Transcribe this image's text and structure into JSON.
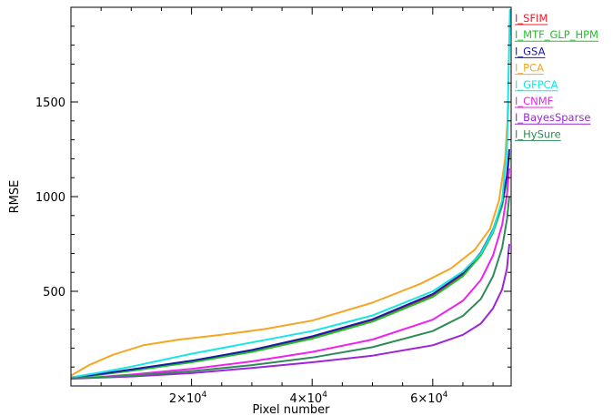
{
  "chart_data": {
    "type": "line",
    "xlabel": "Pixel number",
    "ylabel": "RMSE",
    "xlim": [
      0,
      73000
    ],
    "ylim": [
      0,
      2000
    ],
    "x_ticks": [
      {
        "value": 20000,
        "base": "2×10",
        "exp": "4"
      },
      {
        "value": 40000,
        "base": "4×10",
        "exp": "4"
      },
      {
        "value": 60000,
        "base": "6×10",
        "exp": "4"
      }
    ],
    "y_ticks": [
      500,
      1000,
      1500
    ],
    "legend_position": "top-right, outside plot",
    "grid": false,
    "series": [
      {
        "name": "I_SFIM",
        "color": "#e8202a",
        "x": [
          0,
          5000,
          10000,
          20000,
          30000,
          40000,
          50000,
          60000,
          65000,
          68000,
          70000,
          71500,
          72300,
          72700
        ],
        "y": [
          45,
          62,
          82,
          128,
          185,
          255,
          345,
          480,
          590,
          700,
          820,
          960,
          1100,
          1230
        ]
      },
      {
        "name": "I_MTF_GLP_HPM",
        "color": "#22c02a",
        "x": [
          0,
          5000,
          10000,
          20000,
          30000,
          40000,
          50000,
          60000,
          65000,
          68000,
          70000,
          71500,
          72300,
          72700
        ],
        "y": [
          45,
          60,
          80,
          125,
          180,
          250,
          340,
          470,
          580,
          690,
          810,
          950,
          1090,
          1220
        ]
      },
      {
        "name": "I_GSA",
        "color": "#1a1aa8",
        "x": [
          0,
          5000,
          10000,
          20000,
          30000,
          40000,
          50000,
          60000,
          65000,
          68000,
          70000,
          71500,
          72300,
          72700
        ],
        "y": [
          45,
          64,
          87,
          133,
          190,
          262,
          352,
          485,
          595,
          705,
          825,
          970,
          1110,
          1250
        ]
      },
      {
        "name": "I_PCA",
        "color": "#f5a623",
        "x": [
          0,
          3000,
          7000,
          12000,
          18000,
          25000,
          32000,
          40000,
          50000,
          58000,
          63000,
          67000,
          69500,
          71000,
          72000,
          72600
        ],
        "y": [
          55,
          110,
          165,
          215,
          245,
          270,
          300,
          345,
          440,
          540,
          620,
          720,
          830,
          980,
          1200,
          1500
        ]
      },
      {
        "name": "I_GFPCA",
        "color": "#18e5e5",
        "x": [
          0,
          5000,
          10000,
          20000,
          30000,
          40000,
          50000,
          60000,
          65000,
          68000,
          70000,
          71500,
          72300,
          72800
        ],
        "y": [
          45,
          72,
          102,
          170,
          230,
          290,
          372,
          500,
          605,
          700,
          820,
          980,
          1250,
          1990
        ]
      },
      {
        "name": "I_CNMF",
        "color": "#ee22ee",
        "x": [
          0,
          5000,
          10000,
          20000,
          30000,
          40000,
          50000,
          60000,
          65000,
          68000,
          70000,
          71500,
          72300,
          72700
        ],
        "y": [
          40,
          48,
          60,
          90,
          130,
          180,
          245,
          350,
          450,
          560,
          690,
          850,
          1010,
          1150
        ]
      },
      {
        "name": "I_BayesSparse",
        "color": "#9b25d9",
        "x": [
          0,
          5000,
          10000,
          20000,
          30000,
          40000,
          50000,
          60000,
          65000,
          68000,
          70000,
          71500,
          72300,
          72700
        ],
        "y": [
          38,
          44,
          50,
          68,
          95,
          125,
          160,
          215,
          270,
          330,
          410,
          510,
          620,
          750
        ]
      },
      {
        "name": "I_HySure",
        "color": "#2e8b57",
        "x": [
          0,
          5000,
          10000,
          20000,
          30000,
          40000,
          50000,
          60000,
          65000,
          68000,
          70000,
          71500,
          72300,
          72700
        ],
        "y": [
          40,
          46,
          55,
          78,
          110,
          150,
          205,
          290,
          370,
          460,
          580,
          730,
          880,
          1000
        ]
      }
    ]
  }
}
